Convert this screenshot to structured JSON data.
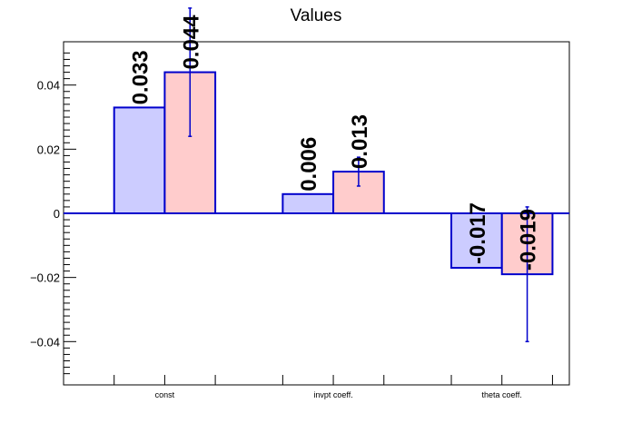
{
  "chart_data": {
    "type": "bar",
    "title": "Values",
    "xlabel": "",
    "ylabel": "",
    "categories": [
      "const",
      "invpt coeff.",
      "theta coeff."
    ],
    "series": [
      {
        "values": [
          0.033,
          0.006,
          -0.017
        ],
        "labels": [
          "0.033",
          "0.006",
          "-0.017"
        ],
        "errors": [
          0,
          0,
          0
        ],
        "color": "#ccccff"
      },
      {
        "values": [
          0.044,
          0.013,
          -0.019
        ],
        "labels": [
          "0.044",
          "0.013",
          "-0.019"
        ],
        "errors": [
          0.02,
          0.0045,
          0.021
        ],
        "color": "#ffcccc"
      }
    ],
    "ylim": [
      -0.0535,
      0.0535
    ],
    "yticks": [
      -0.04,
      -0.02,
      0,
      0.02,
      0.04
    ],
    "ytick_labels": [
      "−0.04",
      "−0.02",
      "0",
      "0.02",
      "0.04"
    ],
    "grid": false,
    "legend": "none",
    "outline_color": "#0000cc",
    "zero_line_color": "#0000cc"
  }
}
